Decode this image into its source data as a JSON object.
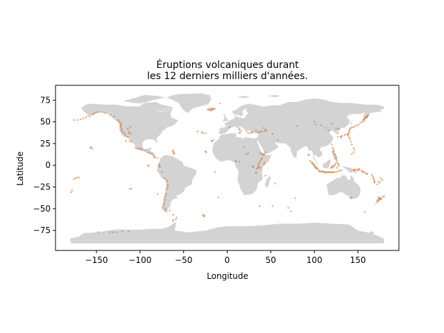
{
  "colors": {
    "land": "#d3d3d3",
    "land_edge": "#ffffff",
    "eruption": "#d2691e",
    "axes": "#000000",
    "background": "#ffffff"
  },
  "chart_data": {
    "type": "scatter",
    "title": "Éruptions volcaniques durant\nles 12 derniers milliers d'années.",
    "title_lines": [
      "Éruptions volcaniques durant",
      "les 12 derniers milliers d'années."
    ],
    "xlabel": "Longitude",
    "ylabel": "Latitude",
    "xlim": [
      -197,
      197
    ],
    "ylim": [
      -98,
      92
    ],
    "xticks": [
      -150,
      -100,
      -50,
      0,
      50,
      100,
      150
    ],
    "xtick_labels": [
      "−150",
      "−100",
      "−50",
      "0",
      "50",
      "100",
      "150"
    ],
    "yticks": [
      -75,
      -50,
      -25,
      0,
      25,
      50,
      75
    ],
    "ytick_labels": [
      "−75",
      "−50",
      "−25",
      "0",
      "25",
      "50",
      "75"
    ],
    "grid": false,
    "basemap": "world country polygons (light grey)",
    "series": [
      {
        "marker": "small dot",
        "point_count_estimate": 1300,
        "points": [
          [
            -176,
            52
          ],
          [
            -172,
            52
          ],
          [
            -168,
            53
          ],
          [
            -165,
            54
          ],
          [
            -162,
            55
          ],
          [
            -158,
            56
          ],
          [
            -155,
            58
          ],
          [
            -153,
            59
          ],
          [
            -152,
            60
          ],
          [
            -150,
            61
          ],
          [
            -147,
            61
          ],
          [
            -143,
            61
          ],
          [
            -140,
            60
          ],
          [
            -134,
            58
          ],
          [
            -130,
            56
          ],
          [
            -125,
            52
          ],
          [
            -124,
            50
          ],
          [
            -122,
            49
          ],
          [
            -122,
            47
          ],
          [
            -122,
            46
          ],
          [
            -122,
            44
          ],
          [
            -121,
            42
          ],
          [
            -121,
            40
          ],
          [
            -120,
            38
          ],
          [
            -118,
            37
          ],
          [
            -117,
            35
          ],
          [
            -114,
            33
          ],
          [
            -113,
            37
          ],
          [
            -111,
            36
          ],
          [
            -112,
            39
          ],
          [
            -114,
            42
          ],
          [
            -111,
            44
          ],
          [
            -116,
            28
          ],
          [
            -112,
            28
          ],
          [
            -110,
            27
          ],
          [
            -105,
            20
          ],
          [
            -103,
            19
          ],
          [
            -101,
            19
          ],
          [
            -99,
            19
          ],
          [
            -97,
            18
          ],
          [
            -94,
            17
          ],
          [
            -91,
            15
          ],
          [
            -89,
            14
          ],
          [
            -87,
            13
          ],
          [
            -85,
            12
          ],
          [
            -84,
            10
          ],
          [
            -83,
            9
          ],
          [
            -155,
            19
          ],
          [
            -157,
            20
          ],
          [
            -156,
            21
          ],
          [
            -78,
            1
          ],
          [
            -78,
            -1
          ],
          [
            -77,
            -2
          ],
          [
            -75,
            -8
          ],
          [
            -72,
            -15
          ],
          [
            -70,
            -17
          ],
          [
            -69,
            -19
          ],
          [
            -68,
            -22
          ],
          [
            -68,
            -24
          ],
          [
            -69,
            -27
          ],
          [
            -70,
            -33
          ],
          [
            -71,
            -36
          ],
          [
            -72,
            -39
          ],
          [
            -72,
            -41
          ],
          [
            -73,
            -44
          ],
          [
            -73,
            -46
          ],
          [
            -74,
            -49
          ],
          [
            -70,
            -52
          ],
          [
            -71,
            -50
          ],
          [
            -66,
            -52
          ],
          [
            -62,
            -57
          ],
          [
            -58,
            -60
          ],
          [
            -62,
            -63
          ],
          [
            -91,
            0
          ],
          [
            -90,
            -1
          ],
          [
            -80,
            -33
          ],
          [
            -110,
            -27
          ],
          [
            -112,
            -27
          ],
          [
            -62,
            17
          ],
          [
            -62,
            16
          ],
          [
            -61,
            14
          ],
          [
            -61,
            13
          ],
          [
            -62,
            15
          ],
          [
            -34,
            39
          ],
          [
            -29,
            38
          ],
          [
            -28,
            37
          ],
          [
            -25,
            37
          ],
          [
            -17,
            28
          ],
          [
            -16,
            29
          ],
          [
            -18,
            28
          ],
          [
            -24,
            15
          ],
          [
            -25,
            16
          ],
          [
            -22,
            64
          ],
          [
            -20,
            64
          ],
          [
            -19,
            63
          ],
          [
            -17,
            65
          ],
          [
            -16,
            64
          ],
          [
            -18,
            63
          ],
          [
            -14,
            65
          ],
          [
            -8,
            71
          ],
          [
            -10,
            -37
          ],
          [
            -14,
            -8
          ],
          [
            -28,
            -57
          ],
          [
            -27,
            -58
          ],
          [
            -26,
            -58
          ],
          [
            3,
            44
          ],
          [
            14,
            41
          ],
          [
            15,
            38
          ],
          [
            14,
            37
          ],
          [
            24,
            37
          ],
          [
            27,
            37
          ],
          [
            29,
            38
          ],
          [
            33,
            40
          ],
          [
            35,
            38
          ],
          [
            37,
            38
          ],
          [
            38,
            39
          ],
          [
            40,
            39
          ],
          [
            43,
            39
          ],
          [
            44,
            41
          ],
          [
            45,
            40
          ],
          [
            42,
            43
          ],
          [
            52,
            36
          ],
          [
            58,
            29
          ],
          [
            10,
            5
          ],
          [
            9,
            4
          ],
          [
            14,
            4
          ],
          [
            22,
            13
          ],
          [
            24,
            14
          ],
          [
            19,
            21
          ],
          [
            38,
            14
          ],
          [
            40,
            13
          ],
          [
            41,
            12
          ],
          [
            42,
            12
          ],
          [
            43,
            13
          ],
          [
            44,
            15
          ],
          [
            40,
            8
          ],
          [
            39,
            7
          ],
          [
            38,
            5
          ],
          [
            37,
            3
          ],
          [
            36,
            1
          ],
          [
            36,
            -1
          ],
          [
            35,
            -3
          ],
          [
            34,
            -4
          ],
          [
            36,
            -2
          ],
          [
            38,
            -3
          ],
          [
            29,
            -1
          ],
          [
            30,
            -2
          ],
          [
            42,
            1
          ],
          [
            43,
            3
          ],
          [
            33,
            -8
          ],
          [
            33,
            -9
          ],
          [
            44,
            -12
          ],
          [
            37,
            -47
          ],
          [
            52,
            -47
          ],
          [
            55,
            -21
          ],
          [
            70,
            -49
          ],
          [
            78,
            -38
          ],
          [
            73,
            -53
          ],
          [
            80,
            45
          ],
          [
            100,
            50
          ],
          [
            102,
            47
          ],
          [
            108,
            46
          ],
          [
            113,
            43
          ],
          [
            116,
            40
          ],
          [
            120,
            48
          ],
          [
            125,
            42
          ],
          [
            128,
            42
          ],
          [
            127,
            37
          ],
          [
            127,
            33
          ],
          [
            130,
            33
          ],
          [
            131,
            32
          ],
          [
            132,
            34
          ],
          [
            135,
            35
          ],
          [
            138,
            35
          ],
          [
            139,
            36
          ],
          [
            140,
            38
          ],
          [
            140,
            40
          ],
          [
            141,
            42
          ],
          [
            143,
            43
          ],
          [
            145,
            44
          ],
          [
            147,
            45
          ],
          [
            149,
            46
          ],
          [
            151,
            47
          ],
          [
            153,
            49
          ],
          [
            155,
            50
          ],
          [
            156,
            52
          ],
          [
            157,
            53
          ],
          [
            158,
            54
          ],
          [
            159,
            55
          ],
          [
            160,
            56
          ],
          [
            161,
            57
          ],
          [
            162,
            58
          ],
          [
            160,
            55
          ],
          [
            157,
            51
          ],
          [
            139,
            34
          ],
          [
            140,
            32
          ],
          [
            141,
            30
          ],
          [
            142,
            27
          ],
          [
            143,
            24
          ],
          [
            145,
            20
          ],
          [
            146,
            18
          ],
          [
            145,
            15
          ],
          [
            143,
            13
          ],
          [
            120,
            24
          ],
          [
            121,
            20
          ],
          [
            122,
            18
          ],
          [
            122,
            16
          ],
          [
            121,
            15
          ],
          [
            123,
            13
          ],
          [
            124,
            12
          ],
          [
            125,
            10
          ],
          [
            125,
            8
          ],
          [
            125,
            7
          ],
          [
            126,
            5
          ],
          [
            125,
            3
          ],
          [
            127,
            2
          ],
          [
            128,
            1
          ],
          [
            128,
            -1
          ],
          [
            126,
            -3
          ],
          [
            124,
            1
          ],
          [
            122,
            -1
          ],
          [
            120,
            -2
          ],
          [
            119,
            -3
          ],
          [
            95,
            5
          ],
          [
            97,
            3
          ],
          [
            98,
            2
          ],
          [
            99,
            1
          ],
          [
            100,
            -1
          ],
          [
            101,
            -2
          ],
          [
            102,
            -3
          ],
          [
            103,
            -4
          ],
          [
            105,
            -6
          ],
          [
            106,
            -7
          ],
          [
            107,
            -7
          ],
          [
            109,
            -7
          ],
          [
            110,
            -7
          ],
          [
            111,
            -8
          ],
          [
            112,
            -8
          ],
          [
            113,
            -8
          ],
          [
            114,
            -8
          ],
          [
            115,
            -8
          ],
          [
            116,
            -8
          ],
          [
            117,
            -8
          ],
          [
            118,
            -8
          ],
          [
            119,
            -8
          ],
          [
            120,
            -8
          ],
          [
            121,
            -8
          ],
          [
            122,
            -8
          ],
          [
            123,
            -8
          ],
          [
            125,
            -8
          ],
          [
            127,
            -7
          ],
          [
            129,
            -6
          ],
          [
            131,
            -6
          ],
          [
            93,
            12
          ],
          [
            94,
            12
          ],
          [
            145,
            -5
          ],
          [
            147,
            -5
          ],
          [
            148,
            -5
          ],
          [
            150,
            -5
          ],
          [
            151,
            -5
          ],
          [
            152,
            -4
          ],
          [
            150,
            -6
          ],
          [
            146,
            -6
          ],
          [
            154,
            -6
          ],
          [
            155,
            -7
          ],
          [
            156,
            -8
          ],
          [
            157,
            -8
          ],
          [
            159,
            -9
          ],
          [
            160,
            -10
          ],
          [
            161,
            -10
          ],
          [
            166,
            -11
          ],
          [
            167,
            -13
          ],
          [
            168,
            -15
          ],
          [
            168,
            -16
          ],
          [
            169,
            -18
          ],
          [
            169,
            -19
          ],
          [
            169,
            -20
          ],
          [
            172,
            -22
          ],
          [
            176,
            -15
          ],
          [
            174,
            -19
          ],
          [
            175,
            -20
          ],
          [
            178,
            -17
          ],
          [
            174,
            -37
          ],
          [
            175,
            -38
          ],
          [
            176,
            -39
          ],
          [
            177,
            -38
          ],
          [
            175,
            -39
          ],
          [
            178,
            -36
          ],
          [
            173,
            -40
          ],
          [
            172,
            -41
          ],
          [
            143,
            -37
          ],
          [
            142,
            -38
          ],
          [
            158,
            -54
          ],
          [
            -178,
            -29
          ],
          [
            -179,
            -31
          ],
          [
            180,
            -36
          ],
          [
            -170,
            -14
          ],
          [
            -172,
            -14
          ],
          [
            -176,
            -16
          ],
          [
            -174,
            -15
          ],
          [
            167,
            -78
          ],
          [
            165,
            -77
          ],
          [
            -113,
            -76
          ],
          [
            -120,
            -76
          ],
          [
            -127,
            -77
          ],
          [
            -131,
            -77
          ],
          [
            -135,
            -77
          ],
          [
            -148,
            -77
          ],
          [
            -59,
            -62
          ],
          [
            -62,
            -64
          ],
          [
            -27,
            -59
          ]
        ]
      }
    ]
  }
}
